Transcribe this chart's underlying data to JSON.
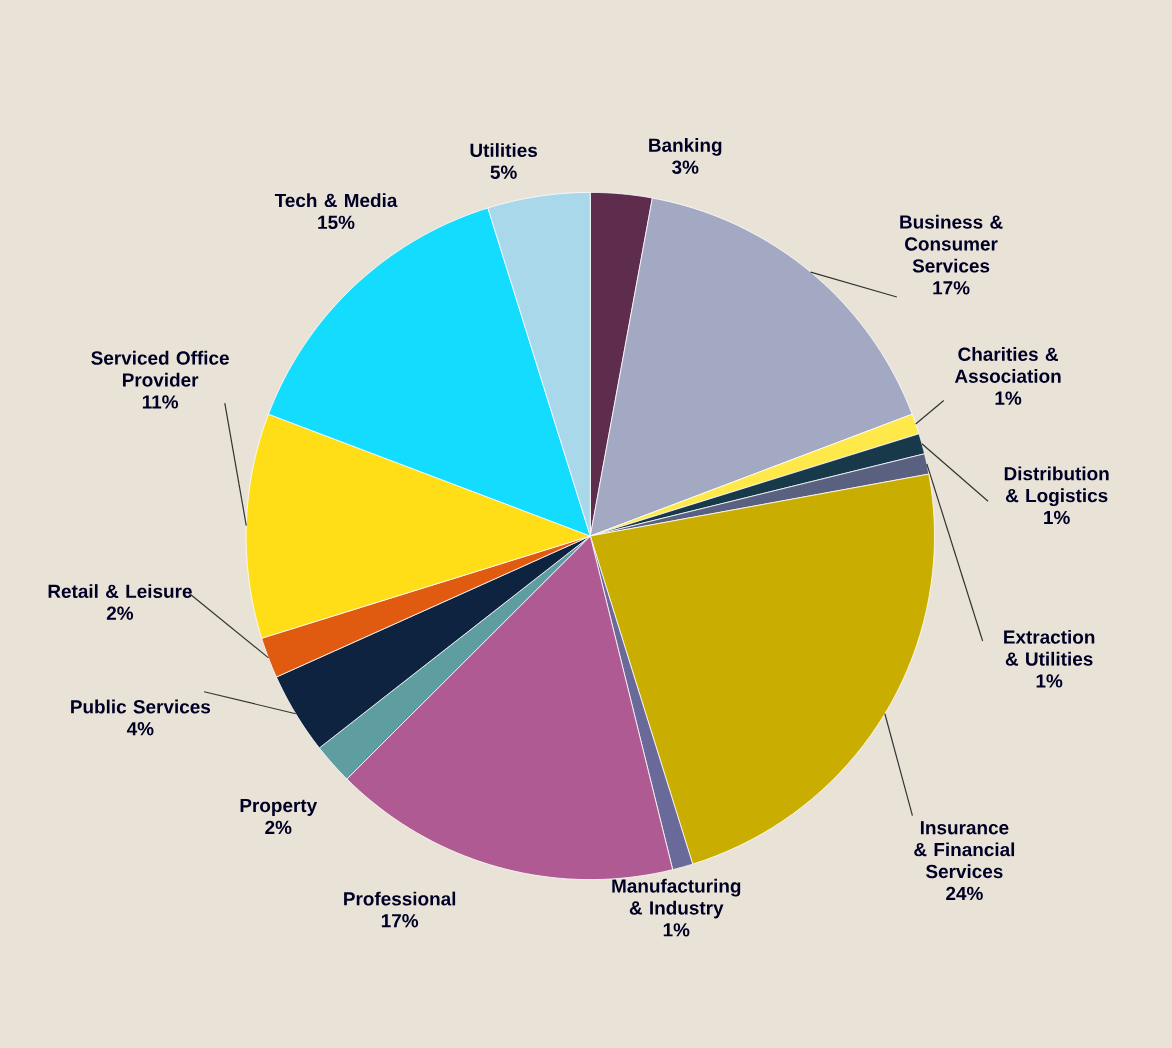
{
  "chart_data": {
    "type": "pie",
    "categories": [
      "Banking",
      "Business & Consumer Services",
      "Charities & Association",
      "Distribution & Logistics",
      "Extraction & Utilities",
      "Insurance & Financial Services",
      "Manufacturing & Industry",
      "Professional",
      "Property",
      "Public Services",
      "Retail & Leisure",
      "Serviced Office Provider",
      "Tech & Media",
      "Utilities"
    ],
    "values": [
      3,
      17,
      1,
      1,
      1,
      24,
      1,
      17,
      2,
      4,
      2,
      11,
      15,
      5
    ],
    "value_labels": [
      "3%",
      "17%",
      "1%",
      "1%",
      "1%",
      "24%",
      "1%",
      "17%",
      "2%",
      "4%",
      "2%",
      "11%",
      "15%",
      "5%"
    ],
    "colors": [
      "#5e2d4e",
      "#a3a8c3",
      "#ffe94a",
      "#17394a",
      "#5a6080",
      "#c9ad00",
      "#6a6a9a",
      "#b05a94",
      "#5e9ea0",
      "#0d2340",
      "#e05a10",
      "#ffde17",
      "#14dcff",
      "#a8d8ea"
    ]
  }
}
